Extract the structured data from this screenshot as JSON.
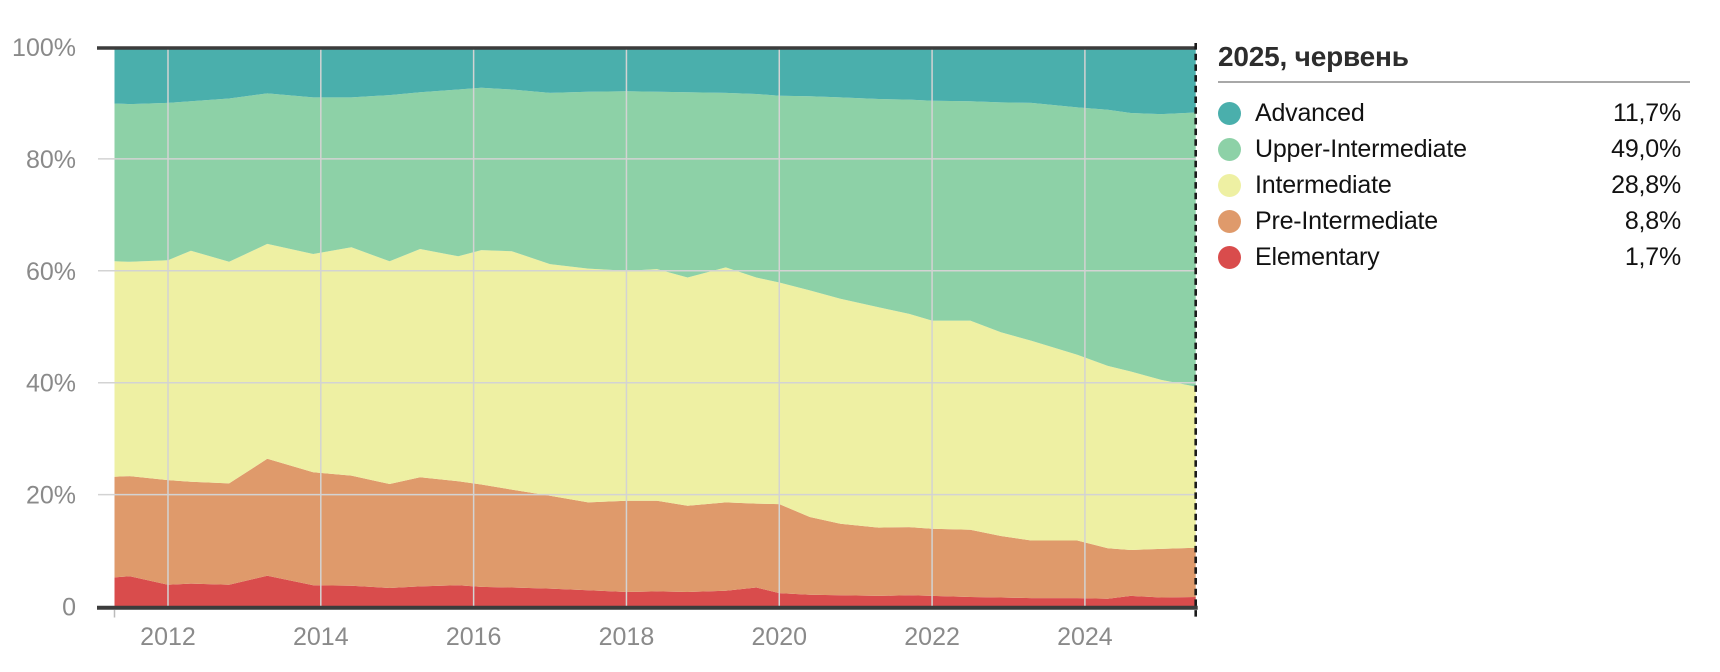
{
  "page": {
    "background": "#ffffff"
  },
  "legend": {
    "title": "2025, червень",
    "items": [
      {
        "label": "Advanced",
        "value": "11,7%"
      },
      {
        "label": "Upper-Intermediate",
        "value": "49,0%"
      },
      {
        "label": "Intermediate",
        "value": "28,8%"
      },
      {
        "label": "Pre-Intermediate",
        "value": "8,8%"
      },
      {
        "label": "Elementary",
        "value": "1,7%"
      }
    ]
  },
  "chart_data": {
    "type": "area",
    "stacked": true,
    "unit": "percent",
    "title": "2025, червень",
    "legend_position": "right",
    "grid": true,
    "xlim": [
      2011.3,
      2025.45
    ],
    "ylim": [
      0,
      100
    ],
    "x": [
      2011.3,
      2011.5,
      2012.0,
      2012.3,
      2012.8,
      2013.3,
      2013.9,
      2014.4,
      2014.9,
      2015.3,
      2015.8,
      2016.1,
      2016.5,
      2017.0,
      2017.5,
      2018.0,
      2018.4,
      2018.8,
      2019.3,
      2019.7,
      2020.0,
      2020.4,
      2020.8,
      2021.3,
      2021.7,
      2022.0,
      2022.5,
      2022.9,
      2023.3,
      2023.9,
      2024.3,
      2024.6,
      2025.0,
      2025.45
    ],
    "series": [
      {
        "name": "Elementary",
        "color": "#D94C4C",
        "values": [
          5.2,
          5.4,
          3.9,
          4.1,
          3.9,
          5.5,
          3.8,
          3.7,
          3.3,
          3.6,
          3.8,
          3.5,
          3.4,
          3.2,
          2.9,
          2.6,
          2.7,
          2.6,
          2.8,
          3.4,
          2.4,
          2.1,
          2.0,
          1.9,
          2.0,
          1.9,
          1.7,
          1.6,
          1.5,
          1.5,
          1.4,
          1.9,
          1.6,
          1.7
        ]
      },
      {
        "name": "Pre-Intermediate",
        "color": "#DF9A6B",
        "values": [
          18.0,
          17.9,
          18.7,
          18.2,
          18.1,
          20.9,
          20.2,
          19.7,
          18.6,
          19.5,
          18.6,
          18.3,
          17.5,
          16.6,
          15.7,
          16.3,
          16.2,
          15.4,
          15.8,
          15.0,
          15.9,
          13.9,
          12.8,
          12.2,
          12.2,
          12.0,
          12.0,
          11.0,
          10.3,
          10.3,
          9.0,
          8.2,
          8.7,
          8.8
        ]
      },
      {
        "name": "Intermediate",
        "color": "#EEF0A3",
        "values": [
          38.5,
          38.3,
          39.3,
          41.3,
          39.6,
          38.4,
          39.0,
          40.8,
          39.8,
          40.8,
          40.2,
          41.9,
          42.6,
          41.4,
          41.8,
          41.1,
          41.4,
          40.8,
          42.0,
          40.4,
          39.6,
          40.5,
          40.2,
          39.4,
          38.1,
          37.2,
          37.4,
          36.4,
          35.7,
          33.2,
          32.6,
          31.9,
          30.2,
          28.8
        ]
      },
      {
        "name": "Upper-Intermediate",
        "color": "#8DD1A7",
        "values": [
          28.2,
          28.2,
          28.1,
          26.7,
          29.2,
          26.9,
          28.0,
          26.8,
          29.7,
          28.0,
          29.8,
          29.0,
          28.9,
          30.6,
          31.6,
          32.1,
          31.7,
          33.1,
          31.2,
          32.8,
          33.4,
          34.7,
          36.0,
          37.2,
          38.3,
          39.3,
          39.2,
          41.1,
          42.5,
          44.2,
          45.8,
          46.2,
          47.5,
          49.0
        ]
      },
      {
        "name": "Advanced",
        "color": "#4AAFAC",
        "values": [
          10.1,
          10.2,
          10.0,
          9.7,
          9.2,
          8.3,
          9.0,
          9.0,
          8.6,
          8.1,
          7.6,
          7.3,
          7.6,
          8.2,
          8.0,
          7.9,
          8.0,
          8.1,
          8.2,
          8.4,
          8.7,
          8.8,
          9.0,
          9.3,
          9.4,
          9.6,
          9.7,
          9.9,
          10.0,
          10.8,
          11.2,
          11.8,
          12.0,
          11.7
        ]
      }
    ],
    "xticks": [
      {
        "value": 2012,
        "label": "2012"
      },
      {
        "value": 2014,
        "label": "2014"
      },
      {
        "value": 2016,
        "label": "2016"
      },
      {
        "value": 2018,
        "label": "2018"
      },
      {
        "value": 2020,
        "label": "2020"
      },
      {
        "value": 2022,
        "label": "2022"
      },
      {
        "value": 2024,
        "label": "2024"
      }
    ],
    "yticks": [
      {
        "value": 0,
        "label": "0"
      },
      {
        "value": 20,
        "label": "20%"
      },
      {
        "value": 40,
        "label": "40%"
      },
      {
        "value": 60,
        "label": "60%"
      },
      {
        "value": 80,
        "label": "80%"
      },
      {
        "value": 100,
        "label": "100%"
      }
    ],
    "marker_line": {
      "x": 2025.45,
      "label": "2025, червень"
    }
  },
  "colors": {
    "axis": "#3c3c3c",
    "grid": "#d3d3d3",
    "tick_label": "#8a8a8a",
    "dashed": "#1b1b1b"
  }
}
